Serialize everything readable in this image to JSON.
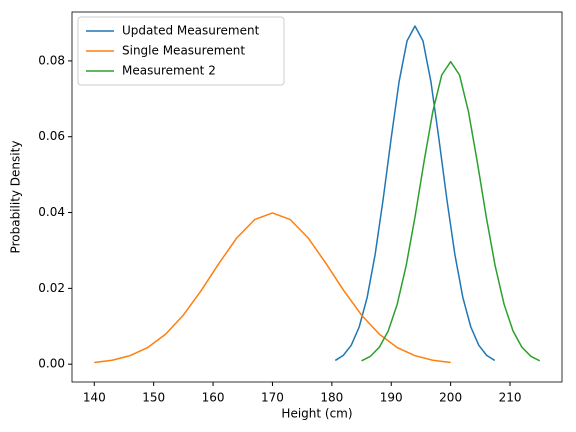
{
  "chart_data": {
    "type": "line",
    "xlabel": "Height (cm)",
    "ylabel": "Probability Density",
    "xlim": [
      136.25,
      218.75
    ],
    "ylim": [
      -0.0047,
      0.0929
    ],
    "xticks": [
      140,
      150,
      160,
      170,
      180,
      190,
      200,
      210
    ],
    "yticks": [
      {
        "value": 0,
        "label": "0.00"
      },
      {
        "value": 0.02,
        "label": "0.02"
      },
      {
        "value": 0.04,
        "label": "0.04"
      },
      {
        "value": 0.06,
        "label": "0.06"
      },
      {
        "value": 0.08,
        "label": "0.08"
      }
    ],
    "grid": false,
    "legend": "upper left",
    "series": [
      {
        "name": "Updated Measurement",
        "color": "#1f77b4",
        "x": [
          180.58,
          181.93,
          183.27,
          184.61,
          185.95,
          187.29,
          188.63,
          189.98,
          191.32,
          192.66,
          194,
          195.34,
          196.68,
          198.02,
          199.37,
          200.71,
          202.05,
          203.39,
          204.73,
          206.07,
          207.42
        ],
        "values": [
          0.000991,
          0.00233,
          0.005007,
          0.00984,
          0.017654,
          0.028965,
          0.043425,
          0.0595,
          0.074514,
          0.085281,
          0.089206,
          0.085281,
          0.074514,
          0.0595,
          0.043425,
          0.028965,
          0.017654,
          0.00984,
          0.005007,
          0.00233,
          0.000991
        ]
      },
      {
        "name": "Single Measurement",
        "color": "#ff7f0e",
        "x": [
          140,
          143,
          146,
          149,
          152,
          155,
          158,
          161,
          164,
          167,
          170,
          173,
          176,
          179,
          182,
          185,
          188,
          191,
          194,
          197,
          200
        ],
        "values": [
          0.000443,
          0.001042,
          0.002239,
          0.004398,
          0.007895,
          0.012952,
          0.019419,
          0.026609,
          0.033322,
          0.038138,
          0.039894,
          0.038138,
          0.033322,
          0.026609,
          0.019419,
          0.012952,
          0.007895,
          0.004398,
          0.002239,
          0.001042,
          0.000443
        ]
      },
      {
        "name": "Measurement 2",
        "color": "#2ca02c",
        "x": [
          185,
          186.5,
          188,
          189.5,
          191,
          192.5,
          194,
          195.5,
          197,
          198.5,
          200,
          201.5,
          203,
          204.5,
          206,
          207.5,
          209,
          210.5,
          212,
          213.5,
          215
        ],
        "values": [
          0.000886,
          0.002084,
          0.004478,
          0.008796,
          0.01579,
          0.025904,
          0.038838,
          0.053218,
          0.066644,
          0.076276,
          0.079788,
          0.076276,
          0.066644,
          0.053218,
          0.038838,
          0.025904,
          0.01579,
          0.008796,
          0.004478,
          0.002084,
          0.000886
        ]
      }
    ]
  }
}
